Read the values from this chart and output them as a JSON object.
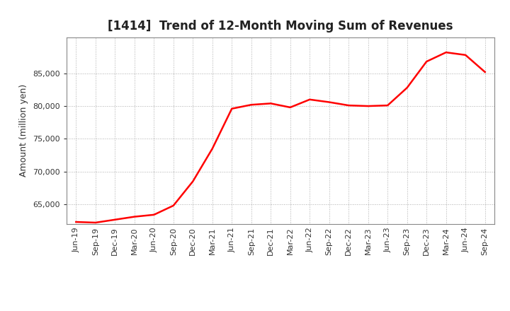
{
  "title": "[1414]  Trend of 12-Month Moving Sum of Revenues",
  "ylabel": "Amount (million yen)",
  "line_color": "#ff0000",
  "line_width": 1.8,
  "background_color": "#ffffff",
  "plot_bg_color": "#ffffff",
  "grid_color": "#999999",
  "ylim": [
    62000,
    90500
  ],
  "yticks": [
    65000,
    70000,
    75000,
    80000,
    85000
  ],
  "values": [
    62300,
    62200,
    62650,
    63100,
    63400,
    64800,
    68500,
    73500,
    79600,
    80200,
    80400,
    79800,
    81000,
    80600,
    80100,
    80000,
    80100,
    82800,
    86800,
    88200,
    87800,
    85200
  ],
  "xtick_labels": [
    "Jun-19",
    "Sep-19",
    "Dec-19",
    "Mar-20",
    "Jun-20",
    "Sep-20",
    "Dec-20",
    "Mar-21",
    "Jun-21",
    "Sep-21",
    "Dec-21",
    "Mar-22",
    "Jun-22",
    "Sep-22",
    "Dec-22",
    "Mar-23",
    "Jun-23",
    "Sep-23",
    "Dec-23",
    "Mar-24",
    "Jun-24",
    "Sep-24"
  ],
  "title_fontsize": 12,
  "ylabel_fontsize": 9,
  "tick_fontsize": 8
}
